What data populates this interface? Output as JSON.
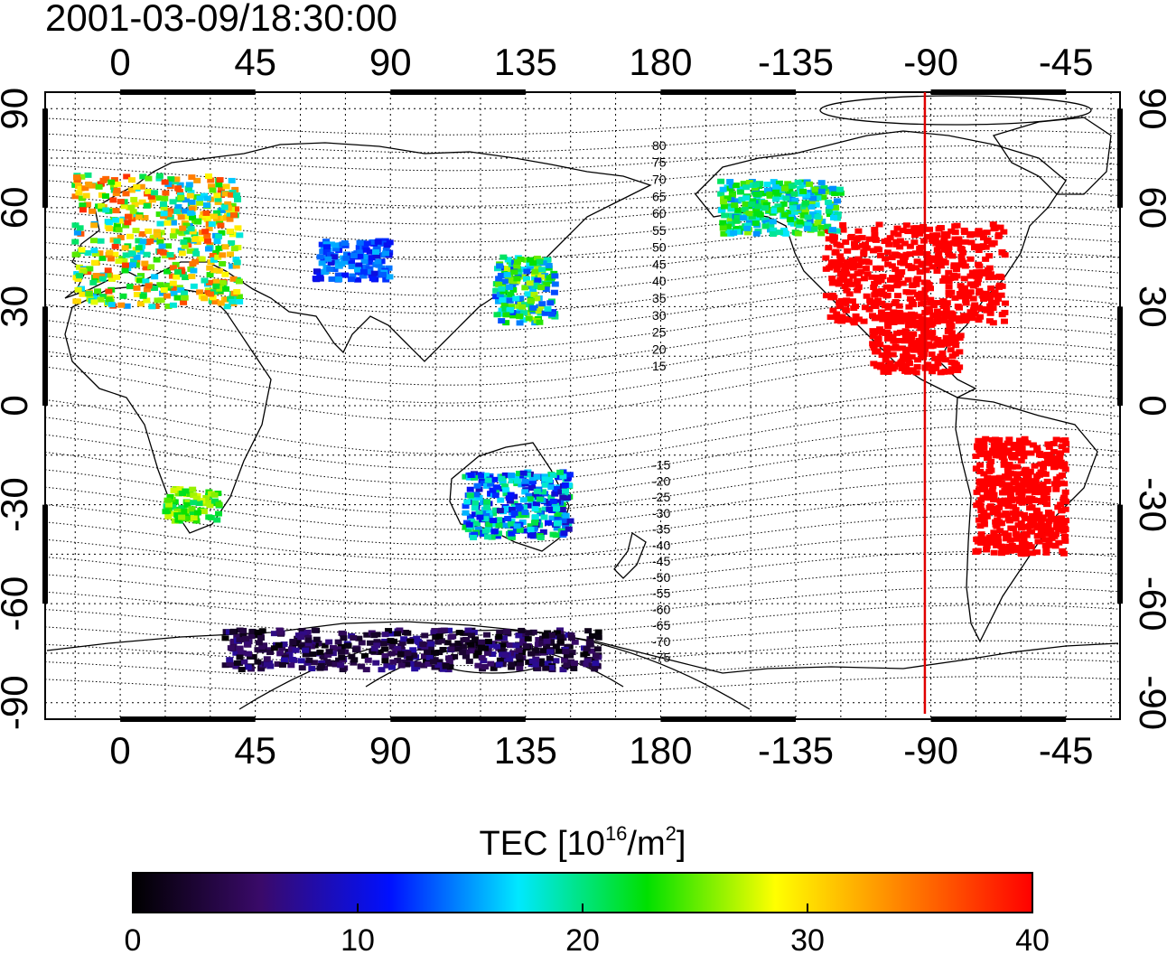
{
  "title": "2001-03-09/18:30:00",
  "map": {
    "lon_ticks_top": [
      "0",
      "45",
      "90",
      "135",
      "180",
      "-135",
      "-90",
      "-45"
    ],
    "lon_ticks_bottom": [
      "0",
      "45",
      "90",
      "135",
      "180",
      "-135",
      "-90",
      "-45"
    ],
    "lat_ticks_left": [
      "90",
      "60",
      "30",
      "0",
      "-30",
      "-60",
      "-90"
    ],
    "lat_ticks_right": [
      "90",
      "60",
      "30",
      "0",
      "-30",
      "-60",
      "-90"
    ],
    "lon_tick_values": [
      0,
      45,
      90,
      135,
      180,
      225,
      270,
      315
    ],
    "lat_tick_values": [
      90,
      60,
      30,
      0,
      -30,
      -60,
      -90
    ],
    "lon_range": [
      -25,
      333
    ],
    "lat_range": [
      -95,
      95
    ],
    "grid": "dotted, every 15 degrees",
    "meridian_marker_lon": -92,
    "meridian_marker_color": "#e00000",
    "contour_labels": [
      "80",
      "75",
      "70",
      "65",
      "60",
      "55",
      "50",
      "45",
      "40",
      "35",
      "30",
      "25",
      "20",
      "15",
      "-15",
      "-20",
      "-25",
      "-30",
      "-35",
      "-40",
      "-45",
      "-50",
      "-55",
      "-60",
      "-65",
      "-70",
      "-75"
    ],
    "contour_label_lats": [
      80,
      75,
      70,
      65,
      60,
      55,
      50,
      45,
      40,
      35,
      30,
      25,
      20,
      15,
      -15,
      -20,
      -25,
      -30,
      -35,
      -40,
      -45,
      -50,
      -55,
      -60,
      -65,
      -70,
      -75
    ]
  },
  "colorbar": {
    "label_main": "TEC  [10",
    "label_sup": "16",
    "label_mid": "/m",
    "label_sup2": "2",
    "label_end": "]",
    "ticks": [
      "0",
      "10",
      "20",
      "30",
      "40"
    ],
    "tick_values": [
      0,
      10,
      20,
      30,
      40
    ],
    "range": [
      0,
      40
    ],
    "colormap": [
      "#000000",
      "#3a0a6a",
      "#0010ff",
      "#00e8ff",
      "#00e000",
      "#ffff00",
      "#ff8000",
      "#ff0000"
    ]
  },
  "tec_regions": [
    {
      "name": "europe",
      "lon": [
        -15,
        40
      ],
      "lat": [
        30,
        70
      ],
      "tec": [
        15,
        38
      ]
    },
    {
      "name": "north-america",
      "lon": [
        235,
        295
      ],
      "lat": [
        25,
        55
      ],
      "tec": [
        40,
        40
      ]
    },
    {
      "name": "central-america",
      "lon": [
        250,
        280
      ],
      "lat": [
        10,
        28
      ],
      "tec": [
        40,
        40
      ]
    },
    {
      "name": "south-america",
      "lon": [
        285,
        315
      ],
      "lat": [
        -45,
        -10
      ],
      "tec": [
        40,
        40
      ]
    },
    {
      "name": "japan",
      "lon": [
        125,
        145
      ],
      "lat": [
        25,
        45
      ],
      "tec": [
        12,
        28
      ]
    },
    {
      "name": "alaska-canada",
      "lon": [
        200,
        240
      ],
      "lat": [
        52,
        68
      ],
      "tec": [
        14,
        26
      ]
    },
    {
      "name": "antarctic-coast",
      "lon": [
        35,
        160
      ],
      "lat": [
        -80,
        -68
      ],
      "tec": [
        0,
        8
      ]
    },
    {
      "name": "australia",
      "lon": [
        115,
        150
      ],
      "lat": [
        -40,
        -20
      ],
      "tec": [
        8,
        22
      ]
    },
    {
      "name": "south-africa",
      "lon": [
        15,
        33
      ],
      "lat": [
        -35,
        -25
      ],
      "tec": [
        20,
        28
      ]
    },
    {
      "name": "central-asia",
      "lon": [
        65,
        90
      ],
      "lat": [
        38,
        50
      ],
      "tec": [
        10,
        16
      ]
    }
  ]
}
